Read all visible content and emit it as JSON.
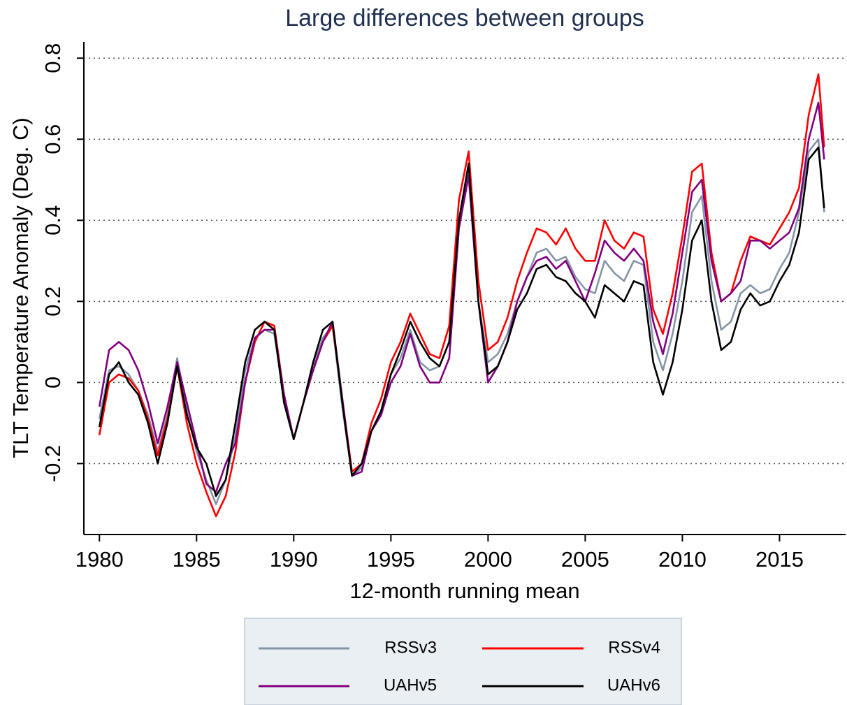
{
  "chart_data": {
    "type": "line",
    "title": "Large differences between groups",
    "ylabel": "TLT Temperature Anomaly (Deg. C)",
    "xlabel": "12-month running mean",
    "x": [
      1980,
      1980.5,
      1981,
      1981.5,
      1982,
      1982.5,
      1983,
      1983.5,
      1984,
      1984.5,
      1985,
      1985.5,
      1986,
      1986.5,
      1987,
      1987.5,
      1988,
      1988.5,
      1989,
      1989.5,
      1990,
      1990.5,
      1991,
      1991.5,
      1992,
      1992.5,
      1993,
      1993.5,
      1994,
      1994.5,
      1995,
      1995.5,
      1996,
      1996.5,
      1997,
      1997.5,
      1998,
      1998.5,
      1999,
      1999.5,
      2000,
      2000.5,
      2001,
      2001.5,
      2002,
      2002.5,
      2003,
      2003.5,
      2004,
      2004.5,
      2005,
      2005.5,
      2006,
      2006.5,
      2007,
      2007.5,
      2008,
      2008.5,
      2009,
      2009.5,
      2010,
      2010.5,
      2011,
      2011.5,
      2012,
      2012.5,
      2013,
      2013.5,
      2014,
      2014.5,
      2015,
      2015.5,
      2016,
      2016.5,
      2017,
      2017.3
    ],
    "series": [
      {
        "name": "RSSv3",
        "color": "#8595a8",
        "values": [
          -0.09,
          0.03,
          0.04,
          0.02,
          -0.02,
          -0.08,
          -0.17,
          -0.08,
          0.06,
          -0.07,
          -0.17,
          -0.24,
          -0.3,
          -0.24,
          -0.13,
          0.03,
          0.11,
          0.13,
          0.12,
          -0.04,
          -0.14,
          -0.05,
          0.04,
          0.11,
          0.14,
          -0.06,
          -0.23,
          -0.21,
          -0.12,
          -0.07,
          0.02,
          0.06,
          0.13,
          0.05,
          0.03,
          0.04,
          0.1,
          0.4,
          0.52,
          0.2,
          0.05,
          0.07,
          0.12,
          0.2,
          0.26,
          0.32,
          0.33,
          0.3,
          0.31,
          0.26,
          0.23,
          0.22,
          0.3,
          0.27,
          0.25,
          0.3,
          0.29,
          0.1,
          0.03,
          0.12,
          0.25,
          0.42,
          0.46,
          0.25,
          0.13,
          0.15,
          0.22,
          0.24,
          0.22,
          0.23,
          0.28,
          0.32,
          0.42,
          0.57,
          0.6,
          0.42
        ]
      },
      {
        "name": "RSSv4",
        "color": "#ff0000",
        "values": [
          -0.13,
          0.0,
          0.02,
          0.01,
          -0.02,
          -0.09,
          -0.18,
          -0.09,
          0.04,
          -0.1,
          -0.2,
          -0.27,
          -0.33,
          -0.28,
          -0.17,
          0.0,
          0.1,
          0.15,
          0.14,
          -0.03,
          -0.14,
          -0.05,
          0.03,
          0.1,
          0.14,
          -0.04,
          -0.22,
          -0.2,
          -0.1,
          -0.04,
          0.05,
          0.1,
          0.17,
          0.12,
          0.07,
          0.06,
          0.14,
          0.45,
          0.57,
          0.25,
          0.08,
          0.1,
          0.16,
          0.25,
          0.32,
          0.38,
          0.37,
          0.34,
          0.38,
          0.33,
          0.3,
          0.3,
          0.4,
          0.35,
          0.33,
          0.37,
          0.36,
          0.18,
          0.12,
          0.22,
          0.36,
          0.52,
          0.54,
          0.32,
          0.2,
          0.22,
          0.3,
          0.36,
          0.35,
          0.34,
          0.38,
          0.42,
          0.48,
          0.66,
          0.76,
          0.58
        ]
      },
      {
        "name": "UAHv5",
        "color": "#800080",
        "values": [
          -0.06,
          0.08,
          0.1,
          0.08,
          0.03,
          -0.05,
          -0.15,
          -0.06,
          0.05,
          -0.05,
          -0.15,
          -0.25,
          -0.27,
          -0.2,
          -0.15,
          0.0,
          0.11,
          0.13,
          0.13,
          -0.03,
          -0.14,
          -0.05,
          0.03,
          0.1,
          0.15,
          -0.04,
          -0.23,
          -0.22,
          -0.12,
          -0.08,
          0.0,
          0.04,
          0.12,
          0.04,
          0.0,
          0.0,
          0.06,
          0.38,
          0.51,
          0.2,
          0.0,
          0.04,
          0.1,
          0.2,
          0.26,
          0.3,
          0.31,
          0.28,
          0.3,
          0.25,
          0.2,
          0.27,
          0.35,
          0.32,
          0.3,
          0.33,
          0.3,
          0.15,
          0.07,
          0.17,
          0.32,
          0.47,
          0.5,
          0.3,
          0.2,
          0.22,
          0.25,
          0.35,
          0.35,
          0.33,
          0.35,
          0.37,
          0.43,
          0.6,
          0.69,
          0.55
        ]
      },
      {
        "name": "UAHv6",
        "color": "#000000",
        "values": [
          -0.11,
          0.02,
          0.05,
          0.0,
          -0.03,
          -0.1,
          -0.2,
          -0.1,
          0.04,
          -0.08,
          -0.16,
          -0.2,
          -0.28,
          -0.24,
          -0.1,
          0.05,
          0.13,
          0.15,
          0.13,
          -0.05,
          -0.14,
          -0.05,
          0.05,
          0.13,
          0.15,
          -0.05,
          -0.23,
          -0.2,
          -0.12,
          -0.07,
          0.02,
          0.08,
          0.15,
          0.1,
          0.06,
          0.04,
          0.1,
          0.4,
          0.54,
          0.2,
          0.02,
          0.04,
          0.1,
          0.18,
          0.22,
          0.28,
          0.29,
          0.26,
          0.25,
          0.22,
          0.2,
          0.16,
          0.24,
          0.22,
          0.2,
          0.25,
          0.24,
          0.05,
          -0.03,
          0.05,
          0.18,
          0.35,
          0.4,
          0.2,
          0.08,
          0.1,
          0.18,
          0.22,
          0.19,
          0.2,
          0.25,
          0.29,
          0.37,
          0.55,
          0.58,
          0.43
        ]
      }
    ],
    "xlim": [
      1979.2,
      2018.4
    ],
    "xticks": [
      1980,
      1985,
      1990,
      1995,
      2000,
      2005,
      2010,
      2015
    ],
    "ylim": [
      -0.375,
      0.84
    ],
    "yticks": [
      -0.2,
      0,
      0.2,
      0.4,
      0.6,
      0.8
    ],
    "grid": true,
    "legend": "bottom"
  }
}
